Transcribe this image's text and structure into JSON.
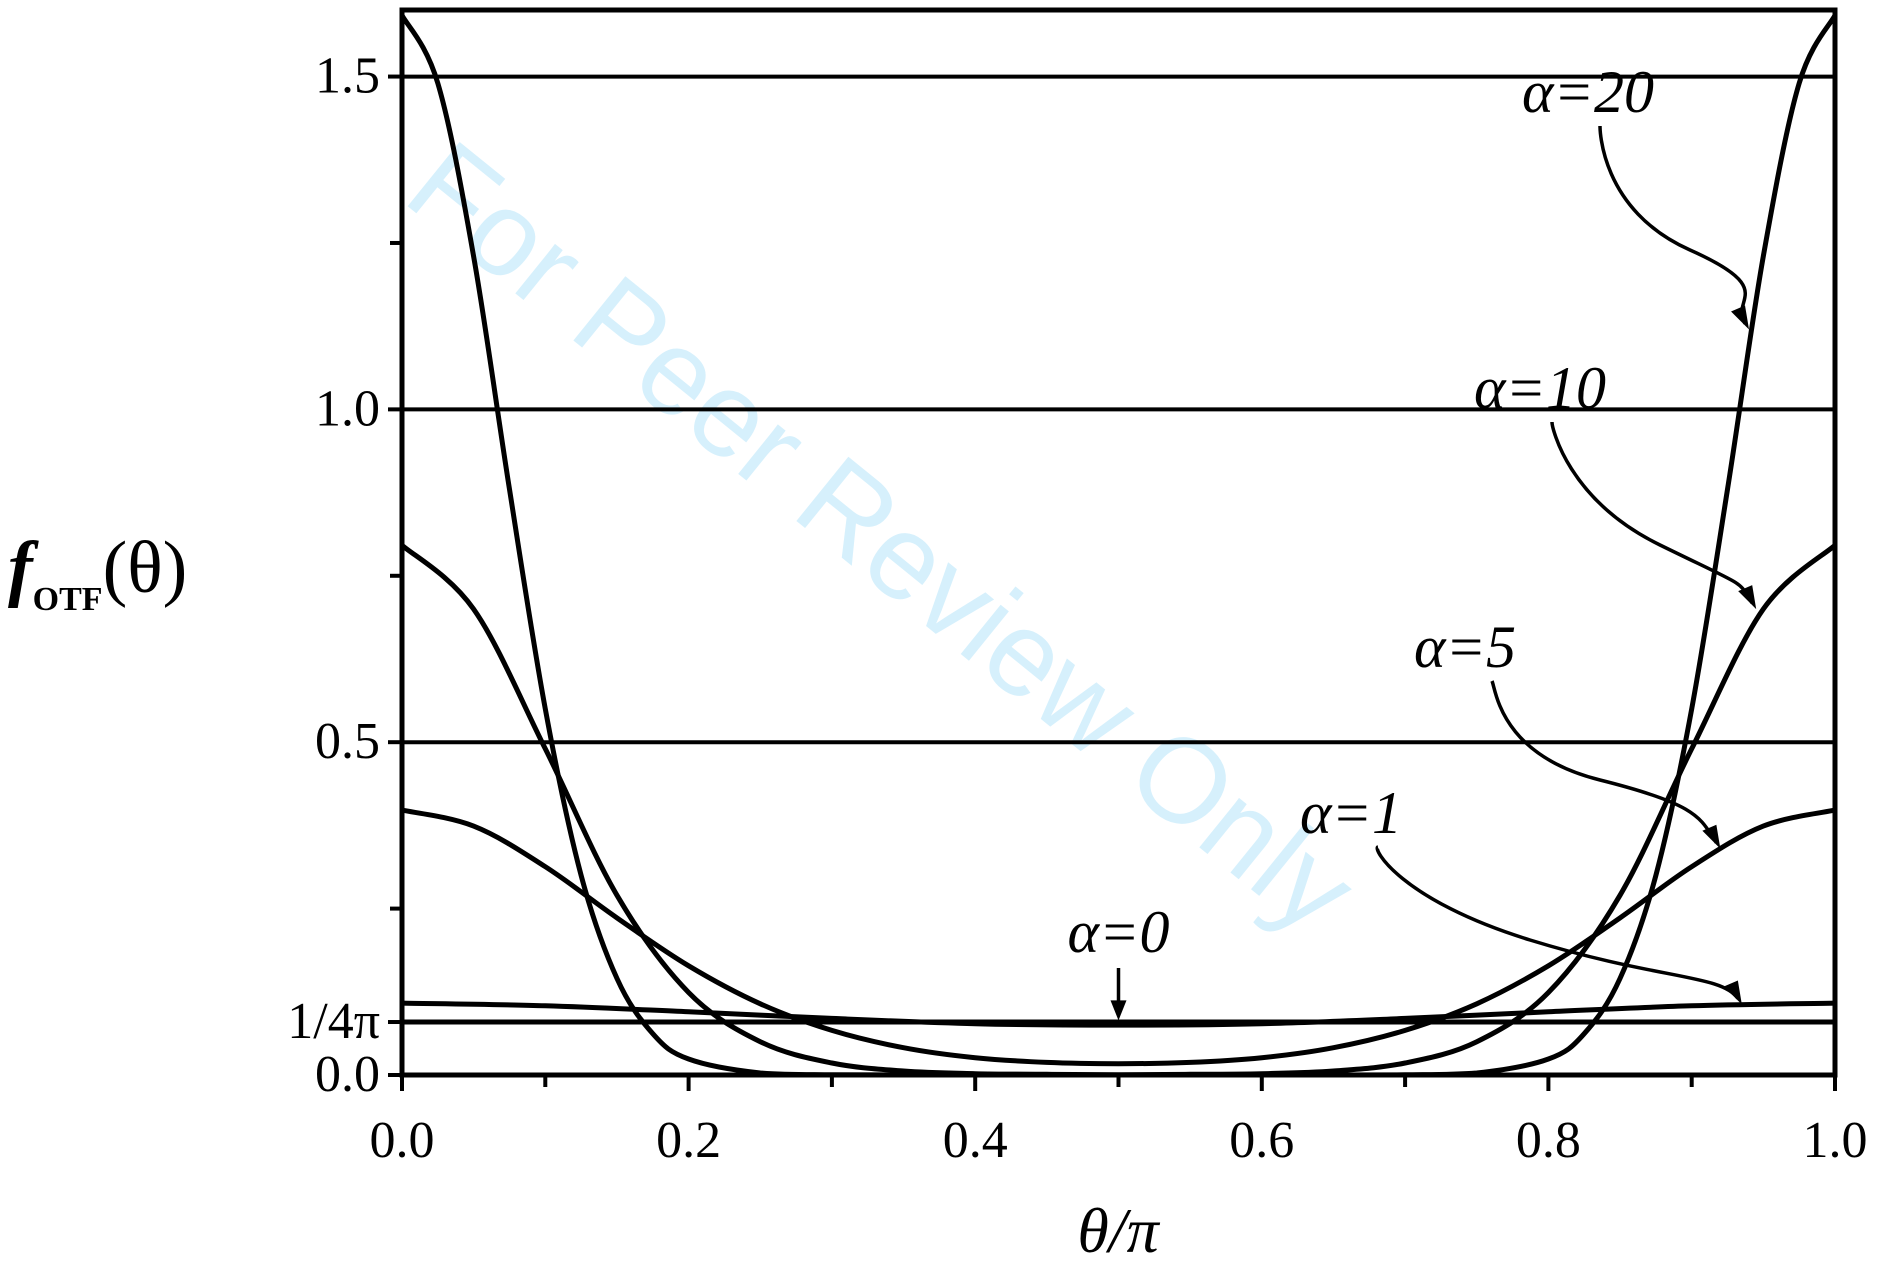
{
  "chart_data": {
    "type": "line",
    "xlabel": "θ/π",
    "ylabel": {
      "main": "f",
      "sub": "OTF",
      "arg": "(θ)"
    },
    "xlim": [
      0.0,
      1.0
    ],
    "ylim": [
      0.0,
      1.6
    ],
    "x_ticks": [
      {
        "value": 0.0,
        "label": "0.0"
      },
      {
        "value": 0.2,
        "label": "0.2"
      },
      {
        "value": 0.4,
        "label": "0.4"
      },
      {
        "value": 0.6,
        "label": "0.6"
      },
      {
        "value": 0.8,
        "label": "0.8"
      },
      {
        "value": 1.0,
        "label": "1.0"
      }
    ],
    "x_minor_ticks": [
      0.1,
      0.3,
      0.5,
      0.7,
      0.9
    ],
    "y_ticks": [
      {
        "value": 0.0,
        "label": "0.0"
      },
      {
        "value": 0.0796,
        "label": "1/4π"
      },
      {
        "value": 0.5,
        "label": "0.5"
      },
      {
        "value": 1.0,
        "label": "1.0"
      },
      {
        "value": 1.5,
        "label": "1.5"
      }
    ],
    "y_minor_ticks": [
      0.25,
      0.75,
      1.25
    ],
    "grid": false,
    "series": [
      {
        "name": "α=0",
        "alpha": 0,
        "x": [
          0.0,
          0.5,
          1.0
        ],
        "y": [
          0.0796,
          0.0796,
          0.0796
        ]
      },
      {
        "name": "α=1",
        "alpha": 1,
        "x": [
          0.0,
          0.1,
          0.2,
          0.3,
          0.4,
          0.5,
          0.6,
          0.7,
          0.8,
          0.9,
          1.0
        ],
        "y": [
          0.108,
          0.104,
          0.095,
          0.085,
          0.077,
          0.075,
          0.077,
          0.085,
          0.095,
          0.104,
          0.108
        ]
      },
      {
        "name": "α=5",
        "alpha": 5,
        "x": [
          0.0,
          0.05,
          0.1,
          0.15,
          0.2,
          0.25,
          0.3,
          0.35,
          0.4,
          0.45,
          0.5,
          0.55,
          0.6,
          0.65,
          0.7,
          0.75,
          0.8,
          0.85,
          0.9,
          0.95,
          1.0
        ],
        "y": [
          0.398,
          0.374,
          0.313,
          0.236,
          0.164,
          0.107,
          0.067,
          0.041,
          0.026,
          0.019,
          0.017,
          0.019,
          0.026,
          0.041,
          0.067,
          0.107,
          0.164,
          0.236,
          0.313,
          0.374,
          0.398
        ]
      },
      {
        "name": "α=10",
        "alpha": 10,
        "x": [
          0.0,
          0.05,
          0.1,
          0.15,
          0.2,
          0.25,
          0.3,
          0.35,
          0.4,
          0.45,
          0.5,
          0.55,
          0.6,
          0.65,
          0.7,
          0.75,
          0.8,
          0.85,
          0.9,
          0.95,
          1.0
        ],
        "y": [
          0.796,
          0.7,
          0.49,
          0.27,
          0.124,
          0.05,
          0.018,
          0.006,
          0.002,
          0.001,
          0.0005,
          0.001,
          0.002,
          0.006,
          0.018,
          0.05,
          0.124,
          0.27,
          0.49,
          0.7,
          0.796
        ]
      },
      {
        "name": "α=20",
        "alpha": 20,
        "x": [
          0.0,
          0.025,
          0.05,
          0.075,
          0.1,
          0.125,
          0.15,
          0.175,
          0.2,
          0.25,
          0.3,
          0.4,
          0.5,
          0.6,
          0.7,
          0.75,
          0.8,
          0.825,
          0.85,
          0.875,
          0.9,
          0.925,
          0.95,
          0.975,
          1.0
        ],
        "y": [
          1.592,
          1.49,
          1.23,
          0.88,
          0.55,
          0.3,
          0.145,
          0.062,
          0.024,
          0.003,
          0.0003,
          0.0,
          0.0,
          0.0,
          0.0003,
          0.003,
          0.024,
          0.062,
          0.145,
          0.3,
          0.55,
          0.88,
          1.23,
          1.49,
          1.592
        ]
      }
    ],
    "annotations": [
      {
        "text": "α=20",
        "arrow_to": {
          "x": 0.94,
          "y": 1.12
        }
      },
      {
        "text": "α=10",
        "arrow_to": {
          "x": 0.945,
          "y": 0.7
        }
      },
      {
        "text": "α=5",
        "arrow_to": {
          "x": 0.92,
          "y": 0.34
        }
      },
      {
        "text": "α=1",
        "arrow_to": {
          "x": 0.935,
          "y": 0.106
        }
      },
      {
        "text": "α=0",
        "arrow_to": {
          "x": 0.5,
          "y": 0.079
        }
      }
    ],
    "watermark": "For Peer Review Only"
  }
}
